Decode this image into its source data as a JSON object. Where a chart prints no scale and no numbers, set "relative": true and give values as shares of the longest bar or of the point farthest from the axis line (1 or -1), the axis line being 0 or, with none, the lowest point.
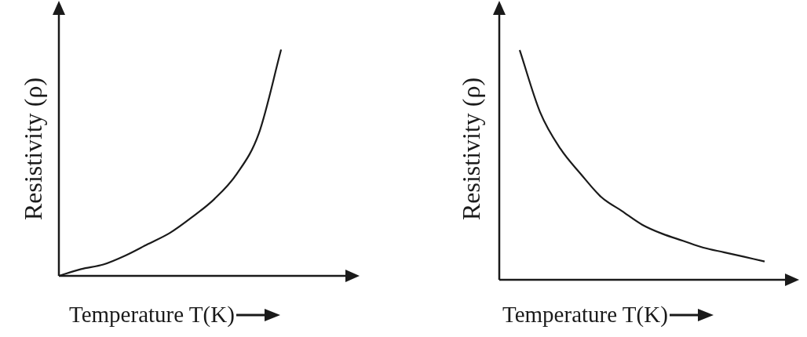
{
  "chart_data": [
    {
      "type": "line",
      "relative": true,
      "xlabel": "Temperature T(K)",
      "ylabel": "Resistivity (ρ)",
      "categories": [
        null,
        null,
        null,
        null,
        null,
        null,
        null,
        null,
        null,
        null,
        null,
        null,
        null,
        null
      ],
      "series": [
        {
          "color": "#1a1a1a",
          "values": [
            0,
            0.03,
            0.05,
            0.09,
            0.14,
            0.19,
            0.26,
            0.34,
            0.45,
            0.63,
            1.0,
            null,
            null,
            null
          ]
        }
      ],
      "marker": "none",
      "line_style": "solid",
      "grid": false,
      "legend": false
    },
    {
      "type": "line",
      "relative": true,
      "xlabel": "Temperature T(K)",
      "ylabel": "Resistivity (ρ)",
      "categories": [
        null,
        null,
        null,
        null,
        null,
        null,
        null,
        null,
        null,
        null,
        null,
        null,
        null,
        null
      ],
      "series": [
        {
          "color": "#1a1a1a",
          "values": [
            null,
            1.0,
            0.73,
            0.57,
            0.46,
            0.36,
            0.3,
            0.24,
            0.2,
            0.17,
            0.14,
            0.12,
            0.1,
            0.08
          ]
        }
      ],
      "marker": "none",
      "line_style": "solid",
      "grid": false,
      "legend": false
    }
  ]
}
